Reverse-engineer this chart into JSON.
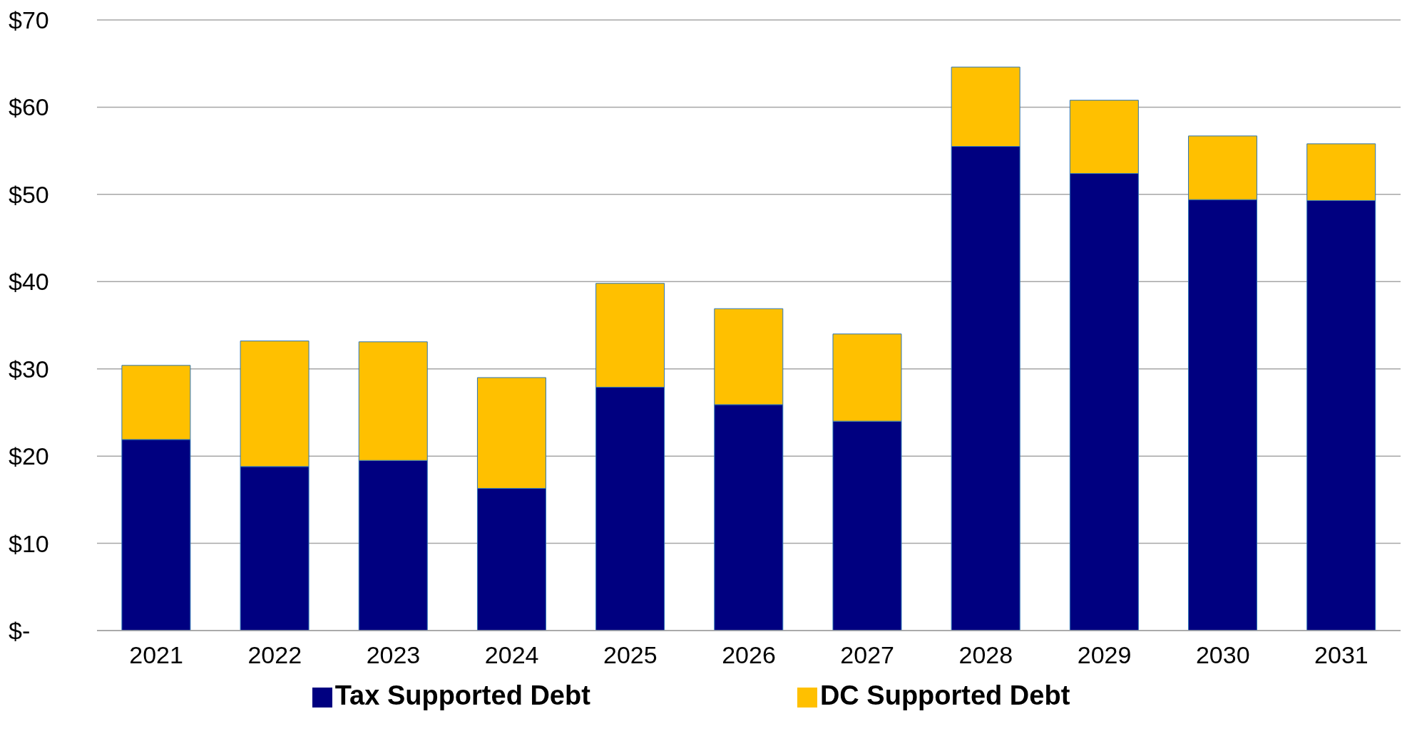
{
  "chart_data": {
    "type": "bar",
    "stacked": true,
    "categories": [
      "2021",
      "2022",
      "2023",
      "2024",
      "2025",
      "2026",
      "2027",
      "2028",
      "2029",
      "2030",
      "2031"
    ],
    "series": [
      {
        "name": "Tax Supported Debt",
        "color": "#000080",
        "values": [
          21.9,
          18.8,
          19.5,
          16.3,
          27.9,
          25.9,
          24.0,
          55.5,
          52.4,
          49.4,
          49.3
        ]
      },
      {
        "name": "DC Supported Debt",
        "color": "#ffc000",
        "values": [
          8.5,
          14.4,
          13.6,
          12.7,
          11.9,
          11.0,
          10.0,
          9.1,
          8.4,
          7.3,
          6.5
        ]
      }
    ],
    "ylim": [
      0,
      70
    ],
    "yticks": [
      {
        "value": 0,
        "label": "$-"
      },
      {
        "value": 10,
        "label": "$10"
      },
      {
        "value": 20,
        "label": "$20"
      },
      {
        "value": 30,
        "label": "$30"
      },
      {
        "value": 40,
        "label": "$40"
      },
      {
        "value": 50,
        "label": "$50"
      },
      {
        "value": 60,
        "label": "$60"
      },
      {
        "value": 70,
        "label": "$70"
      }
    ],
    "grid": "y",
    "legend": "bottom"
  }
}
